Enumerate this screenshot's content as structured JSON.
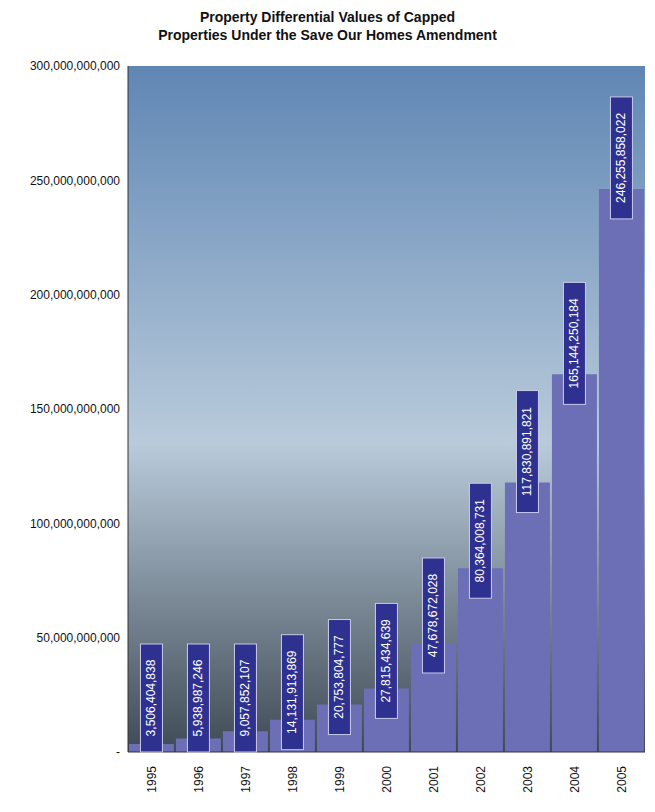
{
  "chart_data": {
    "type": "bar",
    "title": "Property Differential Values of Capped Properties Under the Save Our Homes Amendment",
    "categories": [
      "1995",
      "1996",
      "1997",
      "1998",
      "1999",
      "2000",
      "2001",
      "2002",
      "2003",
      "2004",
      "2005"
    ],
    "values": [
      3506404838,
      5938987246,
      9057852107,
      14131913869,
      20753804777,
      27815434639,
      47678672028,
      80364008731,
      117830891821,
      165144250184,
      246255858022
    ],
    "value_labels": [
      "3,506,404,838",
      "5,938,987,246",
      "9,057,852,107",
      "14,131,913,869",
      "20,753,804,777",
      "27,815,434,639",
      "47,678,672,028",
      "80,364,008,731",
      "117,830,891,821",
      "165,144,250,184",
      "246,255,858,022"
    ],
    "color": "#6c6fb5",
    "ylim": [
      0,
      300000000000
    ],
    "yticks": [
      {
        "value": 0,
        "label": "-"
      },
      {
        "value": 50000000000,
        "label": "50,000,000,000"
      },
      {
        "value": 100000000000,
        "label": "100,000,000,000"
      },
      {
        "value": 150000000000,
        "label": "150,000,000,000"
      },
      {
        "value": 200000000000,
        "label": "200,000,000,000"
      },
      {
        "value": 250000000000,
        "label": "250,000,000,000"
      },
      {
        "value": 300000000000,
        "label": "300,000,000,000"
      }
    ],
    "data_labels": true,
    "grid": false
  }
}
